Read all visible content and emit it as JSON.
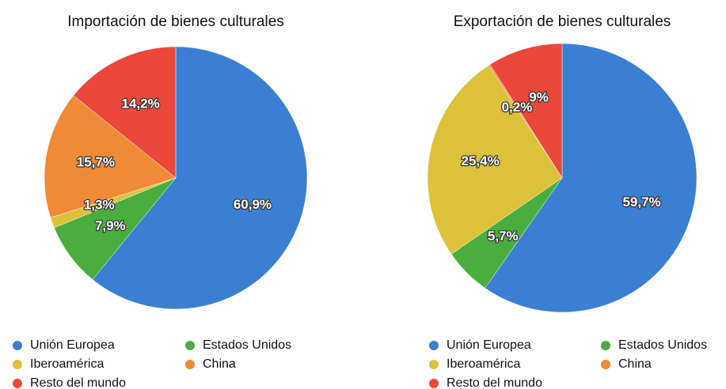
{
  "chart_data": [
    {
      "type": "pie",
      "title": "Importación de bienes culturales",
      "categories": [
        "Unión Europea",
        "Estados Unidos",
        "Iberoamérica",
        "China",
        "Resto del mundo"
      ],
      "values": [
        60.9,
        7.9,
        1.3,
        15.7,
        14.2
      ],
      "value_labels": [
        "60,9%",
        "7,9%",
        "1,3%",
        "15,7%",
        "14,2%"
      ],
      "colors": [
        "#3b7fd2",
        "#4aae3f",
        "#dcc23a",
        "#f08a36",
        "#e9483b"
      ]
    },
    {
      "type": "pie",
      "title": "Exportación de bienes culturales",
      "categories": [
        "Unión Europea",
        "Estados Unidos",
        "Iberoamérica",
        "China",
        "Resto del mundo"
      ],
      "values": [
        59.7,
        5.7,
        25.4,
        0.2,
        9
      ],
      "value_labels": [
        "59,7%",
        "5,7%",
        "25,4%",
        "0,2%",
        "9%"
      ],
      "colors": [
        "#3b7fd2",
        "#4aae3f",
        "#dcc23a",
        "#f08a36",
        "#e9483b"
      ]
    }
  ]
}
